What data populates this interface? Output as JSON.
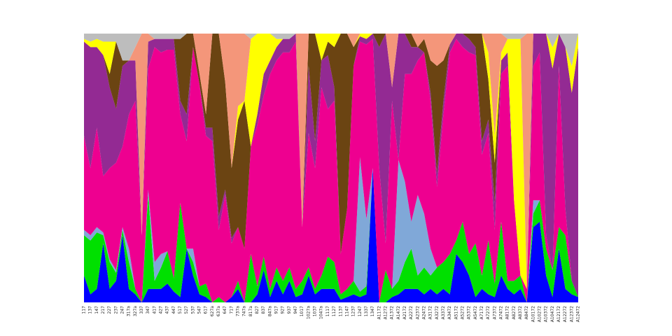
{
  "chart_data": {
    "type": "stacked-area",
    "stacking": "percent",
    "ylim": [
      0,
      100
    ],
    "categories": [
      "117",
      "137",
      "147",
      "217",
      "227",
      "237",
      "247",
      "317a",
      "327a",
      "337",
      "347",
      "417",
      "427",
      "437",
      "447",
      "517",
      "527",
      "537",
      "547",
      "617",
      "627a",
      "637a",
      "647",
      "717",
      "737a",
      "747a",
      "817a",
      "827",
      "837",
      "847a",
      "917",
      "927",
      "937",
      "947",
      "1017",
      "1027a",
      "1037",
      "1047a",
      "1117",
      "1127",
      "1137",
      "1147",
      "1237",
      "1247",
      "1337",
      "1347",
      "A1172",
      "A1272",
      "A1372",
      "A1472",
      "A2172",
      "A2272",
      "A2372",
      "A2472",
      "A3172",
      "A3272",
      "A3372",
      "A3472",
      "A5172",
      "A5272",
      "A5372",
      "A5472",
      "A7172",
      "A7272",
      "A7372",
      "A7472",
      "A8172",
      "A8272",
      "A8372",
      "A8472",
      "A10172",
      "A10272",
      "A10372",
      "A10472",
      "A12172",
      "A12272",
      "A12372",
      "A12472"
    ],
    "series": [
      {
        "color": "#0000ff",
        "values": [
          10,
          3,
          5,
          22,
          5,
          8,
          25,
          5,
          3,
          0,
          5,
          5,
          5,
          7,
          4,
          2,
          20,
          10,
          3,
          2,
          0,
          0,
          0,
          2,
          5,
          0,
          0,
          3,
          12,
          2,
          8,
          3,
          8,
          2,
          3,
          10,
          3,
          5,
          5,
          5,
          1,
          2,
          3,
          2,
          3,
          50,
          0,
          0,
          2,
          3,
          5,
          5,
          5,
          3,
          5,
          3,
          5,
          3,
          18,
          15,
          10,
          2,
          5,
          3,
          2,
          10,
          5,
          3,
          5,
          0,
          28,
          30,
          10,
          2,
          20,
          5,
          3,
          2
        ]
      },
      {
        "color": "#00e000",
        "values": [
          15,
          20,
          21,
          3,
          10,
          3,
          2,
          10,
          2,
          0,
          35,
          3,
          8,
          12,
          5,
          35,
          0,
          5,
          3,
          5,
          0,
          2,
          0,
          0,
          3,
          0,
          18,
          3,
          5,
          3,
          5,
          5,
          5,
          3,
          5,
          3,
          2,
          5,
          12,
          10,
          2,
          3,
          5,
          2,
          3,
          0,
          0,
          12,
          3,
          5,
          10,
          15,
          5,
          10,
          5,
          10,
          10,
          15,
          5,
          15,
          8,
          20,
          5,
          20,
          5,
          20,
          3,
          5,
          5,
          0,
          5,
          8,
          10,
          10,
          8,
          20,
          5,
          0
        ]
      },
      {
        "color": "#80a8d8",
        "values": [
          2,
          2,
          2,
          1,
          1,
          1,
          1,
          5,
          0,
          0,
          2,
          7,
          5,
          0,
          0,
          0,
          0,
          5,
          0,
          0,
          0,
          0,
          0,
          0,
          0,
          0,
          0,
          0,
          0,
          0,
          0,
          0,
          0,
          0,
          0,
          0,
          0,
          0,
          0,
          0,
          0,
          0,
          0,
          50,
          25,
          0,
          0,
          0,
          0,
          45,
          30,
          10,
          30,
          20,
          10,
          0,
          0,
          0,
          0,
          0,
          0,
          0,
          0,
          0,
          0,
          0,
          0,
          0,
          0,
          0,
          5,
          0,
          0,
          0,
          0,
          0,
          0,
          0
        ]
      },
      {
        "color": "#ee0090",
        "values": [
          35,
          25,
          37,
          21,
          34,
          40,
          30,
          50,
          70,
          25,
          45,
          80,
          75,
          75,
          85,
          33,
          40,
          75,
          75,
          55,
          60,
          25,
          40,
          20,
          20,
          20,
          40,
          60,
          60,
          80,
          77,
          85,
          80,
          92,
          20,
          50,
          45,
          70,
          55,
          60,
          15,
          30,
          80,
          43,
          65,
          48,
          50,
          10,
          70,
          0,
          40,
          55,
          50,
          60,
          55,
          30,
          55,
          75,
          75,
          65,
          75,
          70,
          45,
          40,
          20,
          55,
          80,
          30,
          0,
          5,
          50,
          55,
          5,
          0,
          60,
          10,
          0,
          0
        ]
      },
      {
        "color": "#932a93",
        "values": [
          35,
          45,
          30,
          45,
          30,
          20,
          30,
          20,
          15,
          0,
          10,
          3,
          5,
          4,
          4,
          5,
          10,
          0,
          0,
          3,
          5,
          5,
          2,
          2,
          0,
          0,
          0,
          4,
          8,
          5,
          5,
          5,
          5,
          3,
          0,
          25,
          10,
          10,
          20,
          5,
          0,
          0,
          0,
          2,
          2,
          2,
          45,
          78,
          5,
          47,
          15,
          10,
          5,
          0,
          3,
          5,
          5,
          3,
          2,
          5,
          5,
          3,
          5,
          5,
          10,
          5,
          5,
          0,
          0,
          0,
          12,
          7,
          75,
          75,
          12,
          60,
          70,
          93
        ]
      },
      {
        "color": "#6b4412",
        "values": [
          0,
          0,
          0,
          0,
          5,
          25,
          2,
          0,
          0,
          0,
          0,
          0,
          0,
          0,
          0,
          23,
          30,
          5,
          4,
          5,
          35,
          68,
          40,
          26,
          40,
          55,
          0,
          0,
          0,
          0,
          0,
          0,
          0,
          0,
          0,
          12,
          40,
          0,
          5,
          15,
          82,
          65,
          7,
          0,
          0,
          0,
          5,
          0,
          0,
          0,
          0,
          5,
          0,
          5,
          12,
          40,
          15,
          0,
          0,
          0,
          2,
          5,
          40,
          15,
          15,
          0,
          0,
          0,
          0,
          0,
          0,
          0,
          0,
          0,
          0,
          0,
          0,
          0
        ]
      },
      {
        "color": "#ffff00",
        "values": [
          1,
          2,
          3,
          5,
          12,
          0,
          0,
          0,
          0,
          0,
          0,
          0,
          0,
          0,
          0,
          0,
          0,
          0,
          0,
          0,
          0,
          0,
          0,
          0,
          5,
          0,
          40,
          30,
          15,
          10,
          3,
          0,
          0,
          0,
          0,
          0,
          0,
          10,
          3,
          5,
          0,
          0,
          0,
          1,
          2,
          0,
          0,
          0,
          0,
          0,
          0,
          0,
          0,
          0,
          0,
          0,
          0,
          0,
          0,
          0,
          0,
          0,
          0,
          10,
          10,
          3,
          5,
          60,
          88,
          0,
          0,
          0,
          0,
          8,
          0,
          0,
          10,
          5
        ]
      },
      {
        "color": "#f4967a",
        "values": [
          0,
          0,
          0,
          0,
          0,
          0,
          0,
          0,
          5,
          75,
          3,
          0,
          0,
          0,
          0,
          0,
          0,
          0,
          15,
          30,
          0,
          0,
          18,
          50,
          27,
          25,
          0,
          0,
          0,
          0,
          0,
          0,
          0,
          0,
          72,
          0,
          0,
          0,
          0,
          0,
          0,
          0,
          5,
          0,
          0,
          0,
          0,
          0,
          20,
          0,
          0,
          0,
          5,
          2,
          10,
          12,
          10,
          4,
          0,
          0,
          0,
          0,
          0,
          7,
          38,
          7,
          0,
          0,
          0,
          95,
          0,
          0,
          0,
          0,
          0,
          0,
          0,
          0
        ]
      },
      {
        "color": "#bdbdbd",
        "values": [
          2,
          3,
          2,
          3,
          3,
          3,
          10,
          10,
          5,
          0,
          0,
          2,
          2,
          2,
          2,
          2,
          0,
          0,
          0,
          0,
          0,
          0,
          0,
          0,
          0,
          0,
          2,
          0,
          0,
          0,
          2,
          2,
          2,
          0,
          0,
          0,
          0,
          0,
          0,
          0,
          0,
          0,
          0,
          0,
          0,
          0,
          0,
          0,
          0,
          0,
          0,
          0,
          0,
          0,
          0,
          0,
          0,
          0,
          0,
          0,
          0,
          0,
          0,
          0,
          0,
          0,
          2,
          2,
          2,
          0,
          0,
          0,
          0,
          5,
          0,
          5,
          12,
          0
        ]
      }
    ]
  }
}
